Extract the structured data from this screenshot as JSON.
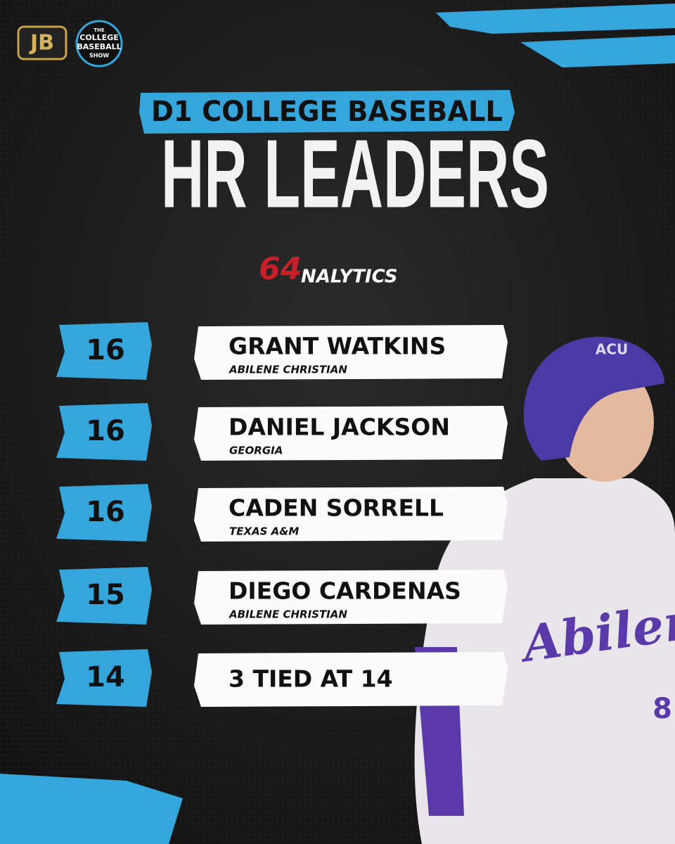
{
  "logos": {
    "jb": "JB",
    "show": [
      "THE",
      "COLLEGE",
      "BASEBALL",
      "SHOW"
    ]
  },
  "header": {
    "subtitle": "D1 COLLEGE BASEBALL",
    "title": "HR LEADERS"
  },
  "sponsor": {
    "mark": "64",
    "name": "NALYTICS"
  },
  "leaders": [
    {
      "hr": 16,
      "name": "GRANT WATKINS",
      "school": "ABILENE CHRISTIAN"
    },
    {
      "hr": 16,
      "name": "DANIEL JACKSON",
      "school": "GEORGIA"
    },
    {
      "hr": 16,
      "name": "CADEN SORRELL",
      "school": "TEXAS A&M"
    },
    {
      "hr": 15,
      "name": "DIEGO CARDENAS",
      "school": "ABILENE CHRISTIAN"
    },
    {
      "hr": 14,
      "name": "3 TIED AT 14"
    }
  ],
  "photo": {
    "helmet": "ACU",
    "jersey": "Abilen",
    "number": "8"
  }
}
